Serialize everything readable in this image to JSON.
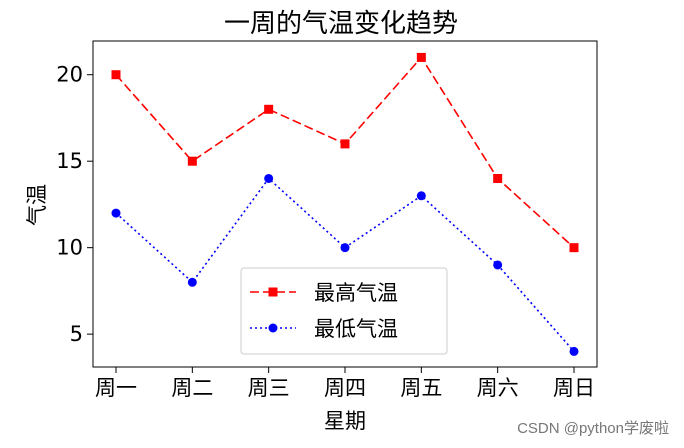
{
  "chart_data": {
    "type": "line",
    "title": "一周的气温变化趋势",
    "xlabel": "星期",
    "ylabel": "气温",
    "categories": [
      "周一",
      "周二",
      "周三",
      "周四",
      "周五",
      "周六",
      "周日"
    ],
    "ylim": [
      3.1,
      21.95
    ],
    "yticks": [
      5,
      10,
      15,
      20
    ],
    "grid": false,
    "legend_position": "lower center",
    "series": [
      {
        "name": "最高气温",
        "values": [
          20,
          15,
          18,
          16,
          21,
          14,
          10
        ],
        "color": "#ff0000",
        "line_style": "dashed",
        "marker": "square"
      },
      {
        "name": "最低气温",
        "values": [
          12,
          8,
          14,
          10,
          13,
          9,
          4
        ],
        "color": "#0000ff",
        "line_style": "dotted",
        "marker": "circle"
      }
    ]
  },
  "watermark": "CSDN @python学废啦"
}
